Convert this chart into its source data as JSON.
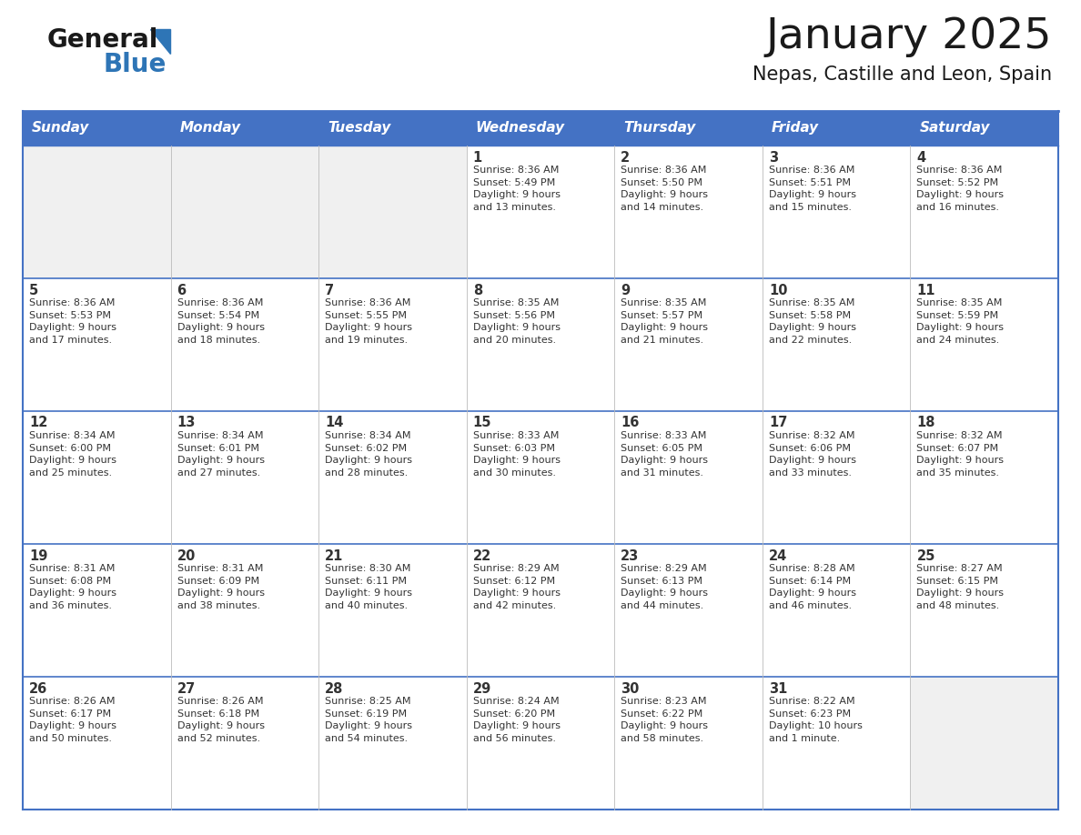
{
  "title": "January 2025",
  "subtitle": "Nepas, Castille and Leon, Spain",
  "header_bg_color": "#4472C4",
  "header_text_color": "#FFFFFF",
  "cell_bg_white": "#FFFFFF",
  "cell_bg_gray": "#F0F0F0",
  "border_color": "#4472C4",
  "row_line_color": "#4472C4",
  "col_line_color": "#BBBBBB",
  "text_color": "#333333",
  "days_of_week": [
    "Sunday",
    "Monday",
    "Tuesday",
    "Wednesday",
    "Thursday",
    "Friday",
    "Saturday"
  ],
  "calendar_data": [
    [
      {
        "day": "",
        "info": ""
      },
      {
        "day": "",
        "info": ""
      },
      {
        "day": "",
        "info": ""
      },
      {
        "day": "1",
        "info": "Sunrise: 8:36 AM\nSunset: 5:49 PM\nDaylight: 9 hours\nand 13 minutes."
      },
      {
        "day": "2",
        "info": "Sunrise: 8:36 AM\nSunset: 5:50 PM\nDaylight: 9 hours\nand 14 minutes."
      },
      {
        "day": "3",
        "info": "Sunrise: 8:36 AM\nSunset: 5:51 PM\nDaylight: 9 hours\nand 15 minutes."
      },
      {
        "day": "4",
        "info": "Sunrise: 8:36 AM\nSunset: 5:52 PM\nDaylight: 9 hours\nand 16 minutes."
      }
    ],
    [
      {
        "day": "5",
        "info": "Sunrise: 8:36 AM\nSunset: 5:53 PM\nDaylight: 9 hours\nand 17 minutes."
      },
      {
        "day": "6",
        "info": "Sunrise: 8:36 AM\nSunset: 5:54 PM\nDaylight: 9 hours\nand 18 minutes."
      },
      {
        "day": "7",
        "info": "Sunrise: 8:36 AM\nSunset: 5:55 PM\nDaylight: 9 hours\nand 19 minutes."
      },
      {
        "day": "8",
        "info": "Sunrise: 8:35 AM\nSunset: 5:56 PM\nDaylight: 9 hours\nand 20 minutes."
      },
      {
        "day": "9",
        "info": "Sunrise: 8:35 AM\nSunset: 5:57 PM\nDaylight: 9 hours\nand 21 minutes."
      },
      {
        "day": "10",
        "info": "Sunrise: 8:35 AM\nSunset: 5:58 PM\nDaylight: 9 hours\nand 22 minutes."
      },
      {
        "day": "11",
        "info": "Sunrise: 8:35 AM\nSunset: 5:59 PM\nDaylight: 9 hours\nand 24 minutes."
      }
    ],
    [
      {
        "day": "12",
        "info": "Sunrise: 8:34 AM\nSunset: 6:00 PM\nDaylight: 9 hours\nand 25 minutes."
      },
      {
        "day": "13",
        "info": "Sunrise: 8:34 AM\nSunset: 6:01 PM\nDaylight: 9 hours\nand 27 minutes."
      },
      {
        "day": "14",
        "info": "Sunrise: 8:34 AM\nSunset: 6:02 PM\nDaylight: 9 hours\nand 28 minutes."
      },
      {
        "day": "15",
        "info": "Sunrise: 8:33 AM\nSunset: 6:03 PM\nDaylight: 9 hours\nand 30 minutes."
      },
      {
        "day": "16",
        "info": "Sunrise: 8:33 AM\nSunset: 6:05 PM\nDaylight: 9 hours\nand 31 minutes."
      },
      {
        "day": "17",
        "info": "Sunrise: 8:32 AM\nSunset: 6:06 PM\nDaylight: 9 hours\nand 33 minutes."
      },
      {
        "day": "18",
        "info": "Sunrise: 8:32 AM\nSunset: 6:07 PM\nDaylight: 9 hours\nand 35 minutes."
      }
    ],
    [
      {
        "day": "19",
        "info": "Sunrise: 8:31 AM\nSunset: 6:08 PM\nDaylight: 9 hours\nand 36 minutes."
      },
      {
        "day": "20",
        "info": "Sunrise: 8:31 AM\nSunset: 6:09 PM\nDaylight: 9 hours\nand 38 minutes."
      },
      {
        "day": "21",
        "info": "Sunrise: 8:30 AM\nSunset: 6:11 PM\nDaylight: 9 hours\nand 40 minutes."
      },
      {
        "day": "22",
        "info": "Sunrise: 8:29 AM\nSunset: 6:12 PM\nDaylight: 9 hours\nand 42 minutes."
      },
      {
        "day": "23",
        "info": "Sunrise: 8:29 AM\nSunset: 6:13 PM\nDaylight: 9 hours\nand 44 minutes."
      },
      {
        "day": "24",
        "info": "Sunrise: 8:28 AM\nSunset: 6:14 PM\nDaylight: 9 hours\nand 46 minutes."
      },
      {
        "day": "25",
        "info": "Sunrise: 8:27 AM\nSunset: 6:15 PM\nDaylight: 9 hours\nand 48 minutes."
      }
    ],
    [
      {
        "day": "26",
        "info": "Sunrise: 8:26 AM\nSunset: 6:17 PM\nDaylight: 9 hours\nand 50 minutes."
      },
      {
        "day": "27",
        "info": "Sunrise: 8:26 AM\nSunset: 6:18 PM\nDaylight: 9 hours\nand 52 minutes."
      },
      {
        "day": "28",
        "info": "Sunrise: 8:25 AM\nSunset: 6:19 PM\nDaylight: 9 hours\nand 54 minutes."
      },
      {
        "day": "29",
        "info": "Sunrise: 8:24 AM\nSunset: 6:20 PM\nDaylight: 9 hours\nand 56 minutes."
      },
      {
        "day": "30",
        "info": "Sunrise: 8:23 AM\nSunset: 6:22 PM\nDaylight: 9 hours\nand 58 minutes."
      },
      {
        "day": "31",
        "info": "Sunrise: 8:22 AM\nSunset: 6:23 PM\nDaylight: 10 hours\nand 1 minute."
      },
      {
        "day": "",
        "info": ""
      }
    ]
  ],
  "logo_color_general": "#1a1a1a",
  "logo_color_blue": "#2E75B6",
  "logo_triangle_color": "#2E75B6",
  "fig_width": 11.88,
  "fig_height": 9.18,
  "fig_dpi": 100
}
